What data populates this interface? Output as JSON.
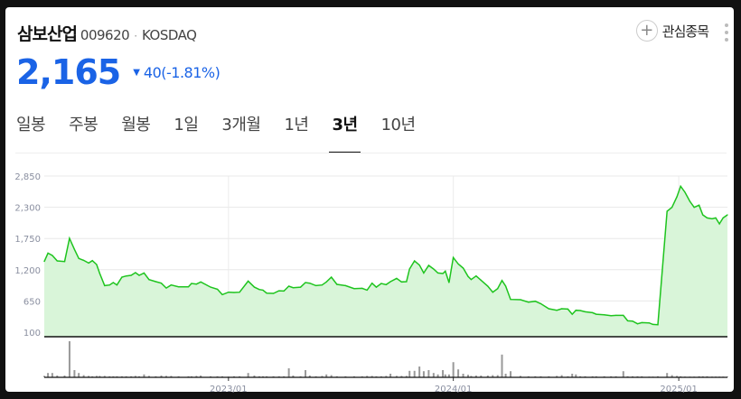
{
  "stock": {
    "name": "삼보산업",
    "code": "009620",
    "separator": "·",
    "market": "KOSDAQ",
    "price": "2,165",
    "change_arrow": "▼",
    "change": "40(-1.81%)",
    "watch_label": "관심종목"
  },
  "colors": {
    "down": "#1a63e6",
    "line": "#1ec41e",
    "fill": "#d9f5d9",
    "volume": "#999999"
  },
  "tabs": [
    {
      "label": "일봉"
    },
    {
      "label": "주봉"
    },
    {
      "label": "월봉"
    },
    {
      "label": "1일"
    },
    {
      "label": "3개월"
    },
    {
      "label": "1년"
    },
    {
      "label": "3년",
      "active": true
    },
    {
      "label": "10년"
    }
  ],
  "chart_data": {
    "type": "area",
    "y_ticks": [
      "2,850",
      "2,300",
      "1,750",
      "1,200",
      "650",
      "100"
    ],
    "ylim": [
      100,
      2850
    ],
    "xlim": [
      "2022-03-08",
      "2025-03-21"
    ],
    "x_ticks": [
      {
        "date": "2023-01-01",
        "label": "2023/01"
      },
      {
        "date": "2024-01-01",
        "label": "2024/01"
      },
      {
        "date": "2025-01-01",
        "label": "2025/01"
      }
    ],
    "grid": true,
    "fields": [
      "date",
      "close",
      "volume_relative"
    ],
    "points": [
      [
        "2022-03-08",
        1345,
        4
      ],
      [
        "2022-03-14",
        1493,
        12
      ],
      [
        "2022-03-21",
        1451,
        12
      ],
      [
        "2022-03-29",
        1356,
        5
      ],
      [
        "2022-04-10",
        1345,
        5
      ],
      [
        "2022-04-18",
        1753,
        100
      ],
      [
        "2022-04-26",
        1557,
        20
      ],
      [
        "2022-05-03",
        1398,
        12
      ],
      [
        "2022-05-11",
        1366,
        6
      ],
      [
        "2022-05-19",
        1318,
        4
      ],
      [
        "2022-05-25",
        1361,
        3
      ],
      [
        "2022-06-01",
        1292,
        4
      ],
      [
        "2022-06-06",
        1133,
        4
      ],
      [
        "2022-06-14",
        921,
        4
      ],
      [
        "2022-06-22",
        931,
        3
      ],
      [
        "2022-06-28",
        974,
        3
      ],
      [
        "2022-07-04",
        931,
        3
      ],
      [
        "2022-07-12",
        1069,
        3
      ],
      [
        "2022-07-19",
        1090,
        3
      ],
      [
        "2022-07-27",
        1101,
        3
      ],
      [
        "2022-08-03",
        1149,
        4
      ],
      [
        "2022-08-09",
        1101,
        3
      ],
      [
        "2022-08-17",
        1143,
        8
      ],
      [
        "2022-08-25",
        1027,
        4
      ],
      [
        "2022-09-05",
        990,
        3
      ],
      [
        "2022-09-14",
        963,
        5
      ],
      [
        "2022-09-22",
        878,
        4
      ],
      [
        "2022-09-30",
        931,
        4
      ],
      [
        "2022-10-12",
        900,
        3
      ],
      [
        "2022-10-28",
        900,
        3
      ],
      [
        "2022-11-02",
        958,
        3
      ],
      [
        "2022-11-10",
        947,
        4
      ],
      [
        "2022-11-17",
        985,
        5
      ],
      [
        "2022-12-03",
        894,
        3
      ],
      [
        "2022-12-14",
        857,
        3
      ],
      [
        "2022-12-22",
        762,
        3
      ],
      [
        "2023-01-01",
        804,
        2
      ],
      [
        "2023-01-10",
        799,
        3
      ],
      [
        "2023-01-19",
        804,
        3
      ],
      [
        "2023-02-02",
        1000,
        12
      ],
      [
        "2023-02-12",
        894,
        5
      ],
      [
        "2023-02-20",
        852,
        3
      ],
      [
        "2023-02-26",
        841,
        3
      ],
      [
        "2023-03-04",
        788,
        3
      ],
      [
        "2023-03-15",
        783,
        3
      ],
      [
        "2023-03-24",
        830,
        3
      ],
      [
        "2023-04-01",
        825,
        3
      ],
      [
        "2023-04-09",
        910,
        25
      ],
      [
        "2023-04-16",
        884,
        5
      ],
      [
        "2023-04-28",
        894,
        3
      ],
      [
        "2023-05-06",
        974,
        20
      ],
      [
        "2023-05-13",
        963,
        5
      ],
      [
        "2023-05-23",
        921,
        3
      ],
      [
        "2023-06-02",
        931,
        4
      ],
      [
        "2023-06-09",
        985,
        8
      ],
      [
        "2023-06-17",
        1069,
        6
      ],
      [
        "2023-06-26",
        942,
        3
      ],
      [
        "2023-07-10",
        921,
        3
      ],
      [
        "2023-07-24",
        868,
        3
      ],
      [
        "2023-08-06",
        873,
        3
      ],
      [
        "2023-08-14",
        841,
        4
      ],
      [
        "2023-08-22",
        963,
        4
      ],
      [
        "2023-08-29",
        894,
        3
      ],
      [
        "2023-09-06",
        958,
        3
      ],
      [
        "2023-09-14",
        937,
        4
      ],
      [
        "2023-09-21",
        990,
        10
      ],
      [
        "2023-10-01",
        1048,
        4
      ],
      [
        "2023-10-09",
        985,
        4
      ],
      [
        "2023-10-17",
        990,
        4
      ],
      [
        "2023-10-22",
        1212,
        18
      ],
      [
        "2023-10-30",
        1356,
        18
      ],
      [
        "2023-11-07",
        1281,
        30
      ],
      [
        "2023-11-14",
        1143,
        17
      ],
      [
        "2023-11-22",
        1276,
        20
      ],
      [
        "2023-11-30",
        1212,
        12
      ],
      [
        "2023-12-07",
        1143,
        8
      ],
      [
        "2023-12-15",
        1133,
        20
      ],
      [
        "2023-12-19",
        1175,
        8
      ],
      [
        "2023-12-25",
        974,
        8
      ],
      [
        "2024-01-01",
        1414,
        42
      ],
      [
        "2024-01-09",
        1302,
        22
      ],
      [
        "2024-01-17",
        1228,
        10
      ],
      [
        "2024-01-25",
        1080,
        7
      ],
      [
        "2024-01-30",
        1027,
        4
      ],
      [
        "2024-02-07",
        1090,
        5
      ],
      [
        "2024-02-15",
        1016,
        5
      ],
      [
        "2024-02-26",
        910,
        5
      ],
      [
        "2024-03-05",
        804,
        6
      ],
      [
        "2024-03-13",
        868,
        6
      ],
      [
        "2024-03-20",
        1011,
        63
      ],
      [
        "2024-03-26",
        910,
        10
      ],
      [
        "2024-04-03",
        677,
        17
      ],
      [
        "2024-04-19",
        672,
        4
      ],
      [
        "2024-05-02",
        629,
        3
      ],
      [
        "2024-05-13",
        645,
        3
      ],
      [
        "2024-05-22",
        603,
        3
      ],
      [
        "2024-06-04",
        513,
        3
      ],
      [
        "2024-06-17",
        487,
        4
      ],
      [
        "2024-06-25",
        513,
        6
      ],
      [
        "2024-07-05",
        507,
        3
      ],
      [
        "2024-07-12",
        417,
        10
      ],
      [
        "2024-07-18",
        487,
        8
      ],
      [
        "2024-07-25",
        481,
        3
      ],
      [
        "2024-08-02",
        460,
        3
      ],
      [
        "2024-08-14",
        444,
        3
      ],
      [
        "2024-08-20",
        417,
        3
      ],
      [
        "2024-09-02",
        407,
        3
      ],
      [
        "2024-09-13",
        391,
        3
      ],
      [
        "2024-09-21",
        396,
        3
      ],
      [
        "2024-10-03",
        396,
        17
      ],
      [
        "2024-10-10",
        301,
        3
      ],
      [
        "2024-10-18",
        296,
        3
      ],
      [
        "2024-10-26",
        248,
        3
      ],
      [
        "2024-11-02",
        269,
        3
      ],
      [
        "2024-11-14",
        264,
        2
      ],
      [
        "2024-11-20",
        237,
        2
      ],
      [
        "2024-11-28",
        232,
        3
      ],
      [
        "2024-12-13",
        2230,
        12
      ],
      [
        "2024-12-21",
        2299,
        6
      ],
      [
        "2024-12-29",
        2484,
        4
      ],
      [
        "2025-01-04",
        2670,
        3
      ],
      [
        "2025-01-11",
        2564,
        2
      ],
      [
        "2025-01-19",
        2405,
        2
      ],
      [
        "2025-01-26",
        2299,
        2
      ],
      [
        "2025-02-03",
        2336,
        3
      ],
      [
        "2025-02-09",
        2166,
        3
      ],
      [
        "2025-02-16",
        2113,
        3
      ],
      [
        "2025-02-24",
        2097,
        2
      ],
      [
        "2025-03-02",
        2113,
        2
      ],
      [
        "2025-03-08",
        2007,
        2
      ],
      [
        "2025-03-14",
        2113,
        2
      ],
      [
        "2025-03-21",
        2166,
        2
      ]
    ]
  }
}
